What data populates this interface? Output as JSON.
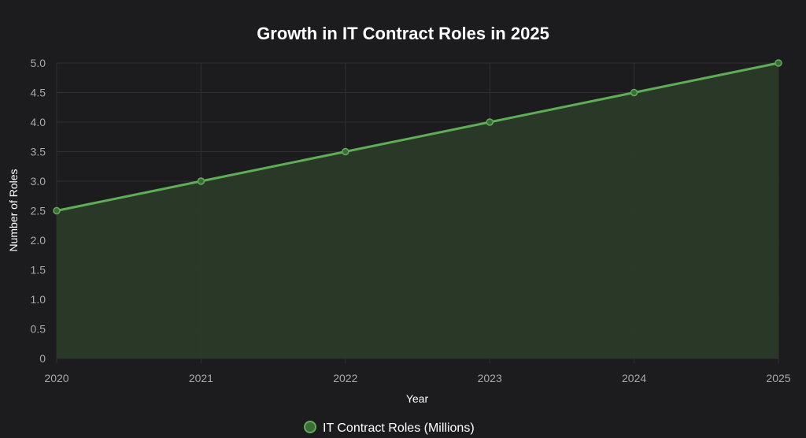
{
  "colors": {
    "background": "#1c1c1e",
    "grid": "#303033",
    "line": "#5fae57",
    "area_fill": "#2a3a28",
    "point_fill": "#3e6b3a"
  },
  "chart_data": {
    "type": "area",
    "title": "Growth in IT Contract Roles in 2025",
    "xlabel": "Year",
    "ylabel": "Number of Roles",
    "categories": [
      "2020",
      "2021",
      "2022",
      "2023",
      "2024",
      "2025"
    ],
    "series": [
      {
        "name": "IT Contract Roles (Millions)",
        "values": [
          2.5,
          3.0,
          3.5,
          4.0,
          4.5,
          5.0
        ]
      }
    ],
    "ylim": [
      0,
      5
    ],
    "yticks": [
      "0",
      "0.5",
      "1.0",
      "1.5",
      "2.0",
      "2.5",
      "3.0",
      "3.5",
      "4.0",
      "4.5",
      "5.0"
    ],
    "grid": true,
    "legend_position": "bottom-center"
  }
}
